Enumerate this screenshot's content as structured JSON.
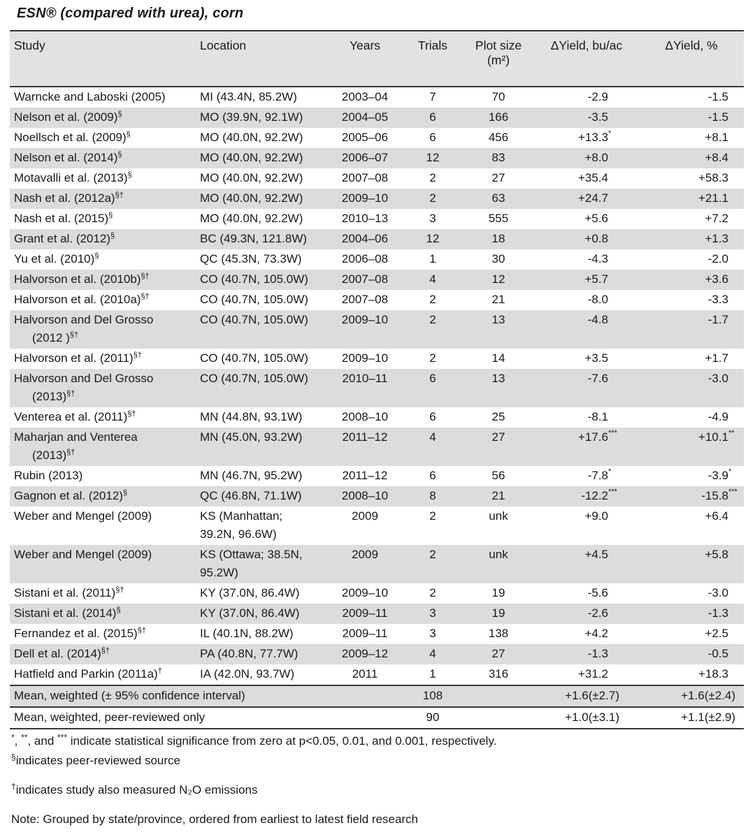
{
  "title": "ESN® (compared with urea), corn",
  "header": {
    "study": "Study",
    "location": "Location",
    "years": "Years",
    "trials": "Trials",
    "plot_line1": "Plot size",
    "plot_line2": "(m²)",
    "yield_bu": "ΔYield, bu/ac",
    "yield_pct": "ΔYield, %"
  },
  "rows": [
    {
      "study": "Warncke and Laboski (2005)",
      "sup": "",
      "location": "MI (43.4N, 85.2W)",
      "years": "2003–04",
      "trials": "7",
      "plot": "70",
      "yield_bu": "-2.9",
      "bu_sup": "",
      "yield_pct": "-1.5",
      "pct_sup": ""
    },
    {
      "study": "Nelson et al. (2009)",
      "sup": "§",
      "location": "MO (39.9N, 92.1W)",
      "years": "2004–05",
      "trials": "6",
      "plot": "166",
      "yield_bu": "-3.5",
      "bu_sup": "",
      "yield_pct": "-1.5",
      "pct_sup": ""
    },
    {
      "study": "Noellsch et al. (2009)",
      "sup": "§",
      "location": "MO (40.0N, 92.2W)",
      "years": "2005–06",
      "trials": "6",
      "plot": "456",
      "yield_bu": "+13.3",
      "bu_sup": "*",
      "yield_pct": "+8.1",
      "pct_sup": ""
    },
    {
      "study": "Nelson et al. (2014)",
      "sup": "§",
      "location": "MO (40.0N, 92.2W)",
      "years": "2006–07",
      "trials": "12",
      "plot": "83",
      "yield_bu": "+8.0",
      "bu_sup": "",
      "yield_pct": "+8.4",
      "pct_sup": ""
    },
    {
      "study": "Motavalli et al. (2013)",
      "sup": "§",
      "location": "MO (40.0N, 92.2W)",
      "years": "2007–08",
      "trials": "2",
      "plot": "27",
      "yield_bu": "+35.4",
      "bu_sup": "",
      "yield_pct": "+58.3",
      "pct_sup": ""
    },
    {
      "study": "Nash et al. (2012a)",
      "sup": "§†",
      "location": "MO (40.0N, 92.2W)",
      "years": "2009–10",
      "trials": "2",
      "plot": "63",
      "yield_bu": "+24.7",
      "bu_sup": "",
      "yield_pct": "+21.1",
      "pct_sup": ""
    },
    {
      "study": "Nash et al. (2015)",
      "sup": "§",
      "location": "MO (40.0N, 92.2W)",
      "years": "2010–13",
      "trials": "3",
      "plot": "555",
      "yield_bu": "+5.6",
      "bu_sup": "",
      "yield_pct": "+7.2",
      "pct_sup": ""
    },
    {
      "study": "Grant et al. (2012)",
      "sup": "§",
      "location": "BC (49.3N, 121.8W)",
      "years": "2004–06",
      "trials": "12",
      "plot": "18",
      "yield_bu": "+0.8",
      "bu_sup": "",
      "yield_pct": "+1.3",
      "pct_sup": ""
    },
    {
      "study": "Yu et al. (2010)",
      "sup": "§",
      "location": "QC (45.3N, 73.3W)",
      "years": "2006–08",
      "trials": "1",
      "plot": "30",
      "yield_bu": "-4.3",
      "bu_sup": "",
      "yield_pct": "-2.0",
      "pct_sup": ""
    },
    {
      "study": "Halvorson et al. (2010b)",
      "sup": "§†",
      "location": "CO (40.7N, 105.0W)",
      "years": "2007–08",
      "trials": "4",
      "plot": "12",
      "yield_bu": "+5.7",
      "bu_sup": "",
      "yield_pct": "+3.6",
      "pct_sup": ""
    },
    {
      "study": "Halvorson et al. (2010a)",
      "sup": "§†",
      "location": "CO (40.7N, 105.0W)",
      "years": "2007–08",
      "trials": "2",
      "plot": "21",
      "yield_bu": "-8.0",
      "bu_sup": "",
      "yield_pct": "-3.3",
      "pct_sup": ""
    },
    {
      "study": "Halvorson and Del Grosso",
      "study2": "(2012 )",
      "sup": "§†",
      "location": "CO (40.7N, 105.0W)",
      "years": "2009–10",
      "trials": "2",
      "plot": "13",
      "yield_bu": "-4.8",
      "bu_sup": "",
      "yield_pct": "-1.7",
      "pct_sup": ""
    },
    {
      "study": "Halvorson et al. (2011)",
      "sup": "§†",
      "location": "CO (40.7N, 105.0W)",
      "years": "2009–10",
      "trials": "2",
      "plot": "14",
      "yield_bu": "+3.5",
      "bu_sup": "",
      "yield_pct": "+1.7",
      "pct_sup": ""
    },
    {
      "study": "Halvorson and Del Grosso",
      "study2": "(2013)",
      "sup": "§†",
      "location": "CO (40.7N, 105.0W)",
      "years": "2010–11",
      "trials": "6",
      "plot": "13",
      "yield_bu": "-7.6",
      "bu_sup": "",
      "yield_pct": "-3.0",
      "pct_sup": ""
    },
    {
      "study": "Venterea et al. (2011)",
      "sup": "§†",
      "location": "MN (44.8N, 93.1W)",
      "years": "2008–10",
      "trials": "6",
      "plot": "25",
      "yield_bu": "-8.1",
      "bu_sup": "",
      "yield_pct": "-4.9",
      "pct_sup": ""
    },
    {
      "study": "Maharjan and  Venterea",
      "study2": "(2013)",
      "sup": "§†",
      "location": "MN (45.0N, 93.2W)",
      "years": "2011–12",
      "trials": "4",
      "plot": "27",
      "yield_bu": "+17.6",
      "bu_sup": "***",
      "yield_pct": "+10.1",
      "pct_sup": "**"
    },
    {
      "study": "Rubin (2013)",
      "sup": "",
      "location": "MN (46.7N, 95.2W)",
      "years": "2011–12",
      "trials": "6",
      "plot": "56",
      "yield_bu": "-7.8",
      "bu_sup": "*",
      "yield_pct": "-3.9",
      "pct_sup": "*"
    },
    {
      "study": "Gagnon et al. (2012)",
      "sup": "§",
      "location": "QC (46.8N, 71.1W)",
      "years": "2008–10",
      "trials": "8",
      "plot": "21",
      "yield_bu": "-12.2",
      "bu_sup": "***",
      "yield_pct": "-15.8",
      "pct_sup": "***"
    },
    {
      "study": "Weber and Mengel (2009)",
      "sup": "",
      "location": "KS (Manhattan;",
      "location2": "39.2N, 96.6W)",
      "years": "2009",
      "trials": "2",
      "plot": "unk",
      "yield_bu": "+9.0",
      "bu_sup": "",
      "yield_pct": "+6.4",
      "pct_sup": ""
    },
    {
      "study": "Weber and Mengel (2009)",
      "sup": "",
      "location": "KS (Ottawa; 38.5N,",
      "location2": "95.2W)",
      "years": "2009",
      "trials": "2",
      "plot": "unk",
      "yield_bu": "+4.5",
      "bu_sup": "",
      "yield_pct": "+5.8",
      "pct_sup": ""
    },
    {
      "study": "Sistani et al. (2011)",
      "sup": "§†",
      "location": "KY (37.0N, 86.4W)",
      "years": "2009–10",
      "trials": "2",
      "plot": "19",
      "yield_bu": "-5.6",
      "bu_sup": "",
      "yield_pct": "-3.0",
      "pct_sup": ""
    },
    {
      "study": "Sistani et al. (2014)",
      "sup": "§",
      "location": "KY (37.0N, 86.4W)",
      "years": "2009–11",
      "trials": "3",
      "plot": "19",
      "yield_bu": "-2.6",
      "bu_sup": "",
      "yield_pct": "-1.3",
      "pct_sup": ""
    },
    {
      "study": "Fernandez et al. (2015)",
      "sup": "§†",
      "location": "IL (40.1N, 88.2W)",
      "years": "2009–11",
      "trials": "3",
      "plot": "138",
      "yield_bu": "+4.2",
      "bu_sup": "",
      "yield_pct": "+2.5",
      "pct_sup": ""
    },
    {
      "study": "Dell et al. (2014)",
      "sup": "§†",
      "location": "PA (40.8N, 77.7W)",
      "years": "2009–12",
      "trials": "4",
      "plot": "27",
      "yield_bu": "-1.3",
      "bu_sup": "",
      "yield_pct": "-0.5",
      "pct_sup": ""
    },
    {
      "study": "Hatfield and Parkin (2011a)",
      "sup": "†",
      "location": "IA (42.0N, 93.7W)",
      "years": "2011",
      "trials": "1",
      "plot": "316",
      "yield_bu": "+31.2",
      "bu_sup": "",
      "yield_pct": "+18.3",
      "pct_sup": ""
    }
  ],
  "summary_rows": [
    {
      "label": "Mean, weighted (± 95% confidence interval)",
      "trials": "108",
      "plot": "",
      "yield_bu": "+1.6(±2.7)",
      "yield_pct": "+1.6(±2.4)"
    },
    {
      "label": "Mean, weighted, peer-reviewed only",
      "trials": "90",
      "plot": "",
      "yield_bu": "+1.0(±3.1)",
      "yield_pct": "+1.1(±2.9)"
    }
  ],
  "footnotes": [
    {
      "gap": "small",
      "segments": [
        {
          "sup": "*"
        },
        {
          "text": ", "
        },
        {
          "sup": "**"
        },
        {
          "text": ", and "
        },
        {
          "sup": "***"
        },
        {
          "text": " indicate statistical significance from zero at p<0.05, 0.01, and 0.001, respectively."
        }
      ]
    },
    {
      "gap": "small",
      "segments": [
        {
          "sup": "§"
        },
        {
          "text": "indicates peer-reviewed source"
        }
      ]
    },
    {
      "gap": "large",
      "segments": [
        {
          "sup": "†"
        },
        {
          "text": "indicates study also measured N₂O emissions"
        }
      ]
    },
    {
      "gap": "large",
      "segments": [
        {
          "text": "Note: Grouped by state/province, ordered from earliest to latest field research"
        }
      ]
    }
  ]
}
